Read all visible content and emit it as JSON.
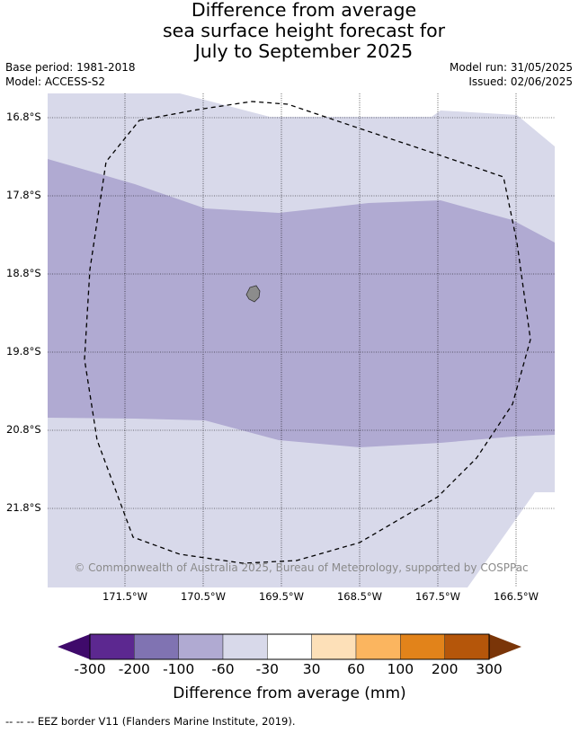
{
  "title": {
    "line1": "Difference from average",
    "line2": "sea surface height forecast for",
    "line3": "July to September 2025"
  },
  "meta": {
    "base_period": "Base period: 1981-2018",
    "model": "Model: ACCESS-S2",
    "model_run": "Model run: 31/05/2025",
    "issued": "Issued: 02/06/2025"
  },
  "map": {
    "longitude_labels": [
      "171.5°W",
      "170.5°W",
      "169.5°W",
      "168.5°W",
      "167.5°W",
      "166.5°W"
    ],
    "latitude_labels": [
      "16.8°S",
      "17.8°S",
      "18.8°S",
      "19.8°S",
      "20.8°S",
      "21.8°S"
    ],
    "copyright": "© Commonwealth of Australia 2025, Bureau of Meteorology, supported by COSPPac",
    "colors": {
      "light_band": "#d8d9ea",
      "mid_band": "#b0aad2",
      "land": "#8c8c8c"
    }
  },
  "colorbar": {
    "ticks": [
      "-300",
      "-200",
      "-100",
      "-60",
      "-30",
      "30",
      "60",
      "100",
      "200",
      "300"
    ],
    "colors": [
      "#3f0a6b",
      "#5c2890",
      "#8073b2",
      "#b0aad2",
      "#d8d9ea",
      "#ffffff",
      "#fde0b8",
      "#fbb55f",
      "#e2831a",
      "#b5560a",
      "#7a3508"
    ],
    "label": "Difference from average (mm)"
  },
  "footnote": "-- -- -- EEZ border V11 (Flanders Marine Institute, 2019)."
}
